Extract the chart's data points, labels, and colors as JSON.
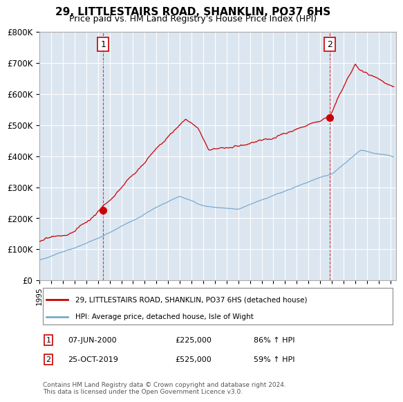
{
  "title": "29, LITTLESTAIRS ROAD, SHANKLIN, PO37 6HS",
  "subtitle": "Price paid vs. HM Land Registry's House Price Index (HPI)",
  "bg_color": "#dce6f1",
  "red_line_color": "#cc0000",
  "blue_line_color": "#7aaacc",
  "sale1_date": 2000.44,
  "sale1_price": 225000,
  "sale2_date": 2019.81,
  "sale2_price": 525000,
  "ylabel_ticks": [
    "£0",
    "£100K",
    "£200K",
    "£300K",
    "£400K",
    "£500K",
    "£600K",
    "£700K",
    "£800K"
  ],
  "ylabel_values": [
    0,
    100000,
    200000,
    300000,
    400000,
    500000,
    600000,
    700000,
    800000
  ],
  "xmin": 1995.0,
  "xmax": 2025.5,
  "ymin": 0,
  "ymax": 800000,
  "legend_label1": "29, LITTLESTAIRS ROAD, SHANKLIN, PO37 6HS (detached house)",
  "legend_label2": "HPI: Average price, detached house, Isle of Wight",
  "table_label1": "07-JUN-2000",
  "table_price1": "£225,000",
  "table_hpi1": "86% ↑ HPI",
  "table_label2": "25-OCT-2019",
  "table_price2": "£525,000",
  "table_hpi2": "59% ↑ HPI",
  "footer": "Contains HM Land Registry data © Crown copyright and database right 2024.\nThis data is licensed under the Open Government Licence v3.0."
}
